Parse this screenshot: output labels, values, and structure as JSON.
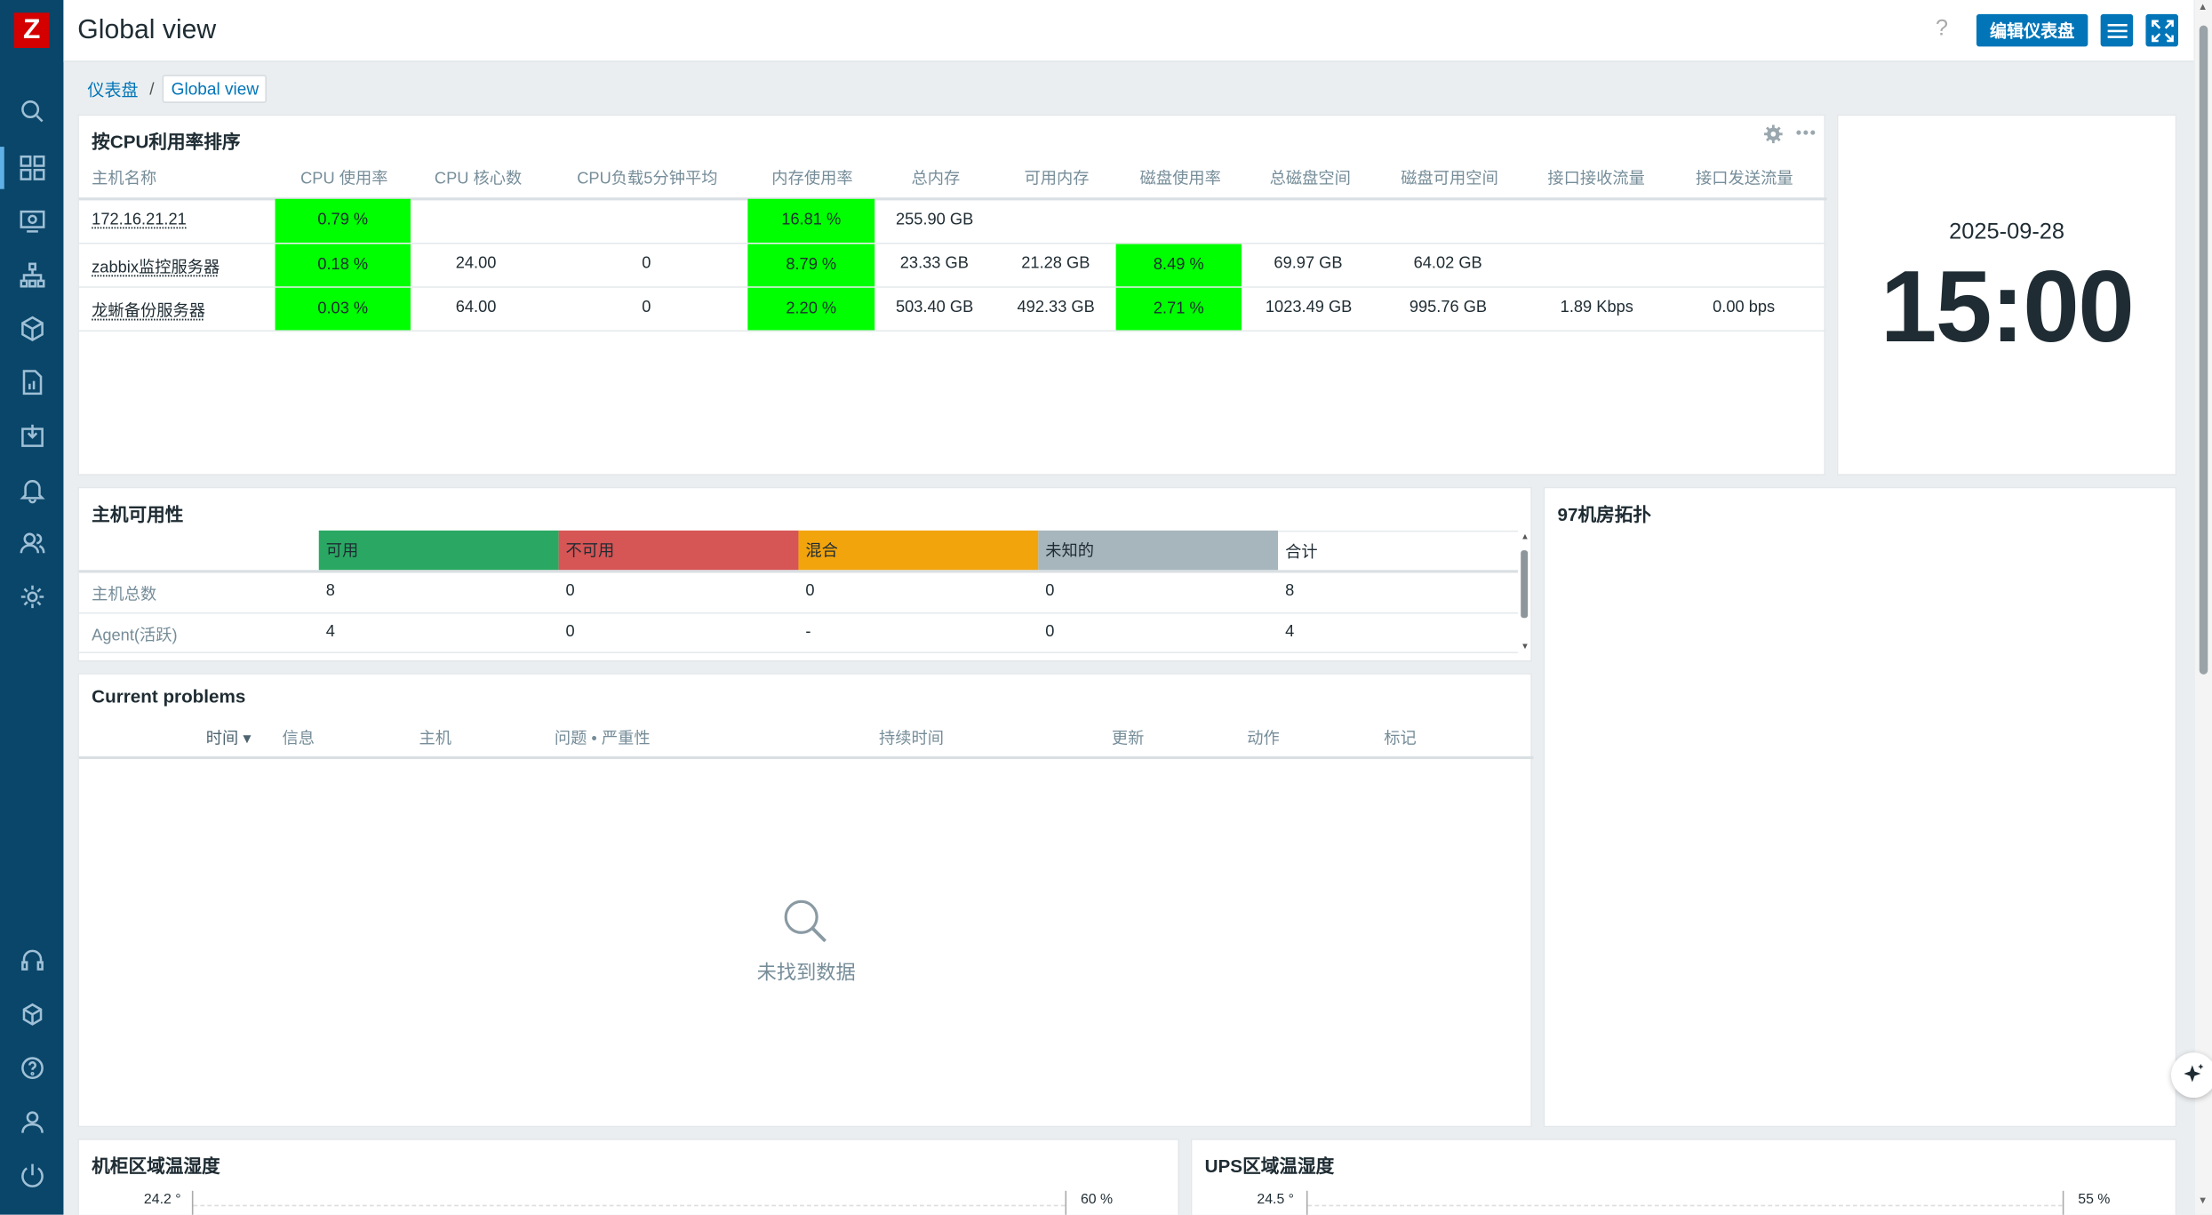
{
  "app": {
    "logo": "Z",
    "title": "Global view",
    "help": "?",
    "edit_button": "编辑仪表盘"
  },
  "breadcrumb": {
    "root": "仪表盘",
    "separator": "/",
    "current": "Global view"
  },
  "cpu_widget": {
    "title": "按CPU利用率排序",
    "columns": [
      "主机名称",
      "CPU 使用率",
      "CPU 核心数",
      "CPU负载5分钟平均",
      "内存使用率",
      "总内存",
      "可用内存",
      "磁盘使用率",
      "总磁盘空间",
      "磁盘可用空间",
      "接口接收流量",
      "接口发送流量"
    ],
    "rows": [
      {
        "host": "172.16.21.21",
        "cpu": "0.79 %",
        "cores": "",
        "load": "",
        "mem": "16.81 %",
        "mem_total": "255.90 GB",
        "mem_free": "",
        "disk": "",
        "disk_total": "",
        "disk_free": "",
        "rx": "",
        "tx": ""
      },
      {
        "host": "zabbix监控服务器",
        "cpu": "0.18 %",
        "cores": "24.00",
        "load": "0",
        "mem": "8.79 %",
        "mem_total": "23.33 GB",
        "mem_free": "21.28 GB",
        "disk": "8.49 %",
        "disk_total": "69.97 GB",
        "disk_free": "64.02 GB",
        "rx": "",
        "tx": ""
      },
      {
        "host": "龙蜥备份服务器",
        "cpu": "0.03 %",
        "cores": "64.00",
        "load": "0",
        "mem": "2.20 %",
        "mem_total": "503.40 GB",
        "mem_free": "492.33 GB",
        "disk": "2.71 %",
        "disk_total": "1023.49 GB",
        "disk_free": "995.76 GB",
        "rx": "1.89 Kbps",
        "tx": "0.00 bps"
      }
    ]
  },
  "clock": {
    "date": "2025-09-28",
    "time": "15:00"
  },
  "availability": {
    "title": "主机可用性",
    "headers": [
      {
        "label": "可用",
        "color": "#2aa863"
      },
      {
        "label": "不可用",
        "color": "#d65555"
      },
      {
        "label": "混合",
        "color": "#f2a40d"
      },
      {
        "label": "未知的",
        "color": "#a7b5bc"
      },
      {
        "label": "合计",
        "color": "#ffffff"
      }
    ],
    "rows": [
      {
        "label": "主机总数",
        "values": [
          "8",
          "0",
          "0",
          "0",
          "8"
        ]
      },
      {
        "label": "Agent(活跃)",
        "values": [
          "4",
          "0",
          "-",
          "0",
          "4"
        ]
      }
    ]
  },
  "topology": {
    "title": "97机房拓扑"
  },
  "problems": {
    "title": "Current problems",
    "columns": [
      "时间 ▾",
      "信息",
      "主机",
      "问题 • 严重性",
      "持续时间",
      "更新",
      "动作",
      "标记"
    ],
    "empty": "未找到数据"
  },
  "cabinet": {
    "title": "机柜区域温湿度",
    "left_tick": "24.2 °",
    "right_tick": "60 %"
  },
  "ups": {
    "title": "UPS区域温湿度",
    "left_tick": "24.5 °",
    "right_tick": "55 %"
  }
}
